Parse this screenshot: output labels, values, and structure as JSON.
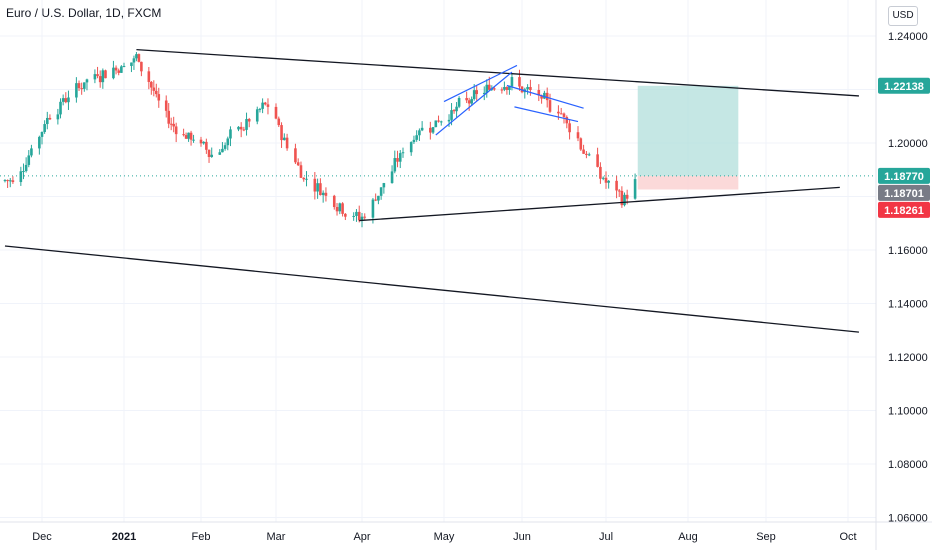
{
  "header": {
    "title": "Euro / U.S. Dollar, 1D, FXCM",
    "currency_button": "USD"
  },
  "colors": {
    "up": "#26a69a",
    "down": "#ef5350",
    "target_zone": "#b2dfdb",
    "stop_zone": "#fbd5d5",
    "last_price_box": "#26a69a",
    "prev_close_box": "#787b86",
    "stop_box": "#f23645",
    "pattern": "#2962ff"
  },
  "chart_data": {
    "type": "candlestick",
    "x_ticks": [
      "Dec",
      "2021",
      "Feb",
      "Mar",
      "Apr",
      "May",
      "Jun",
      "Jul",
      "Aug",
      "Sep",
      "Oct"
    ],
    "y_ticks": [
      "1.24000",
      "1.22000",
      "1.20000",
      "1.18000",
      "1.16000",
      "1.14000",
      "1.12000",
      "1.10000",
      "1.08000",
      "1.06000"
    ],
    "ylim": [
      1.052,
      1.253
    ],
    "grid": true,
    "price_labels": {
      "target": "1.22138",
      "last": "1.18770",
      "prev": "1.18701",
      "stop": "1.18261"
    },
    "candle_path": [
      {
        "date": "2020-11-20",
        "price": 1.186
      },
      {
        "date": "2020-12-04",
        "price": 1.212
      },
      {
        "date": "2020-12-18",
        "price": 1.224
      },
      {
        "date": "2021-01-06",
        "price": 1.232
      },
      {
        "date": "2021-01-18",
        "price": 1.208
      },
      {
        "date": "2021-02-05",
        "price": 1.196
      },
      {
        "date": "2021-02-25",
        "price": 1.214
      },
      {
        "date": "2021-03-10",
        "price": 1.188
      },
      {
        "date": "2021-03-31",
        "price": 1.171
      },
      {
        "date": "2021-04-20",
        "price": 1.204
      },
      {
        "date": "2021-05-25",
        "price": 1.224
      },
      {
        "date": "2021-06-15",
        "price": 1.211
      },
      {
        "date": "2021-06-28",
        "price": 1.188
      },
      {
        "date": "2021-07-07",
        "price": 1.178
      },
      {
        "date": "2021-07-12",
        "price": 1.187
      }
    ],
    "trendlines": [
      {
        "from": {
          "date": "2021-01-06",
          "price": 1.2349
        },
        "to": {
          "date": "2021-10-05",
          "price": 1.2176
        }
      },
      {
        "from": {
          "date": "2021-03-31",
          "price": 1.171
        },
        "to": {
          "date": "2021-09-28",
          "price": 1.1834
        }
      },
      {
        "from": {
          "date": "2020-11-17",
          "price": 1.1615
        },
        "to": {
          "date": "2021-10-05",
          "price": 1.1293
        }
      }
    ],
    "pattern_lines": [
      {
        "from": {
          "date": "2021-04-28",
          "price": 1.203
        },
        "to": {
          "date": "2021-05-28",
          "price": 1.2265
        }
      },
      {
        "from": {
          "date": "2021-05-01",
          "price": 1.2155
        },
        "to": {
          "date": "2021-05-30",
          "price": 1.229
        }
      },
      {
        "from": {
          "date": "2021-05-26",
          "price": 1.2215
        },
        "to": {
          "date": "2021-06-23",
          "price": 1.213
        }
      },
      {
        "from": {
          "date": "2021-05-29",
          "price": 1.2135
        },
        "to": {
          "date": "2021-06-21",
          "price": 1.208
        }
      }
    ],
    "position": {
      "start": "2021-07-13",
      "end": "2021-08-21",
      "entry": 1.1877,
      "target": 1.22138,
      "stop": 1.18261
    }
  }
}
